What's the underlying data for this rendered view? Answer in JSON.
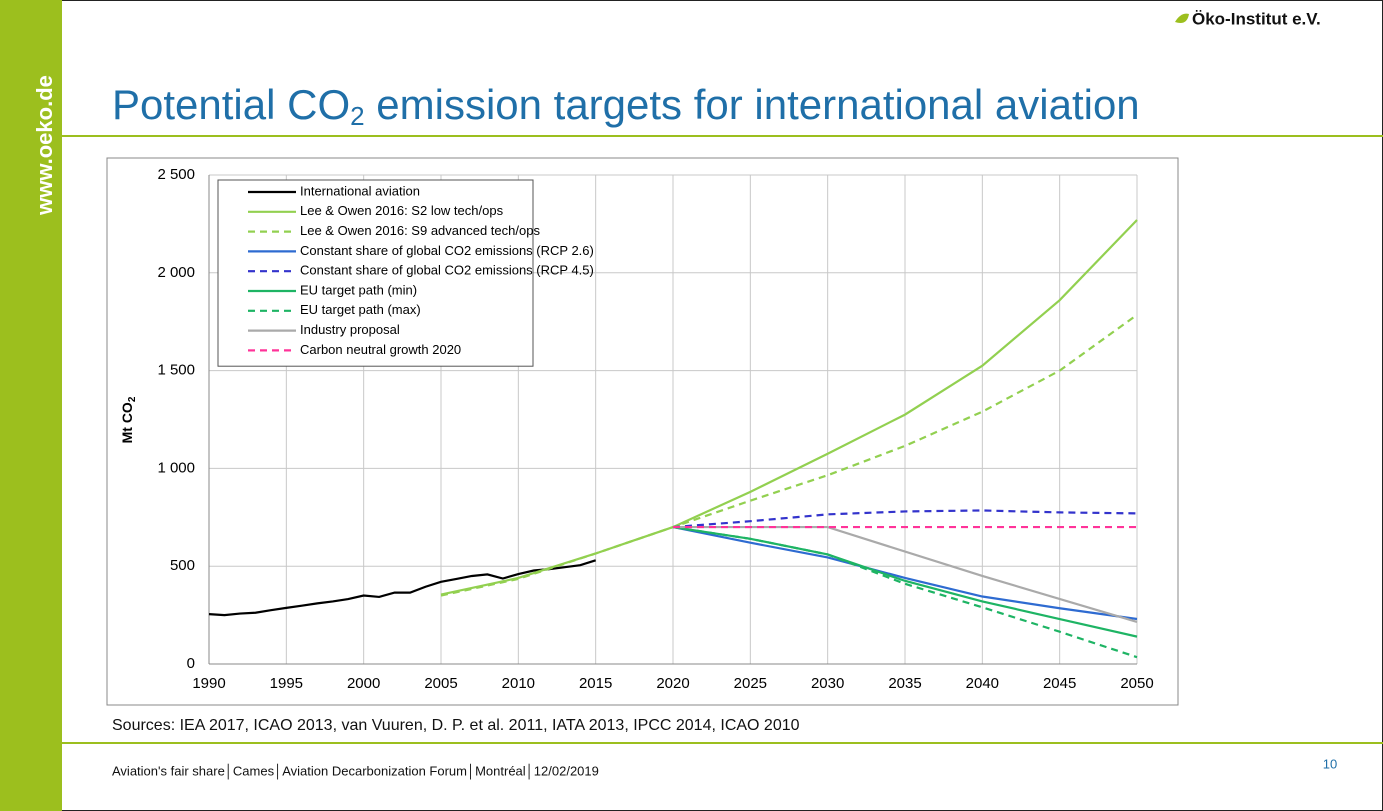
{
  "slide": {
    "sidebar": "www.oeko.de",
    "logo": "Öko-Institut e.V.",
    "title_parts": [
      "Potential CO",
      "2",
      " emission targets for international aviation"
    ],
    "sources": "Sources: IEA 2017, ICAO 2013, van Vuuren, D. P. et al. 2011, IATA 2013, IPCC 2014, ICAO 2010",
    "footer": "Aviation's fair share│Cames│Aviation Decarbonization Forum│Montréal│12/02/2019",
    "page": "10"
  },
  "chart_data": {
    "type": "line",
    "ylabel_parts": [
      "Mt CO",
      "2"
    ],
    "xlim": [
      1990,
      2050
    ],
    "xticks": [
      1990,
      1995,
      2000,
      2005,
      2010,
      2015,
      2020,
      2025,
      2030,
      2035,
      2040,
      2045,
      2050
    ],
    "ylim": [
      0,
      2500
    ],
    "yticks": [
      0,
      500,
      {
        "value": 1000,
        "label": "1 000"
      },
      {
        "value": 1500,
        "label": "1 500"
      },
      {
        "value": 2000,
        "label": "2 000"
      },
      {
        "value": 2500,
        "label": "2 500"
      }
    ],
    "grid": true,
    "legend": "upper left",
    "series": [
      {
        "name": "International aviation",
        "color": "#000000",
        "dashed": false,
        "x": [
          1990,
          1991,
          1992,
          1993,
          1994,
          1995,
          1996,
          1997,
          1998,
          1999,
          2000,
          2001,
          2002,
          2003,
          2004,
          2005,
          2006,
          2007,
          2008,
          2009,
          2010,
          2011,
          2012,
          2013,
          2014,
          2015
        ],
        "values": [
          255,
          250,
          258,
          262,
          275,
          287,
          298,
          310,
          320,
          332,
          350,
          343,
          365,
          365,
          395,
          420,
          435,
          450,
          458,
          437,
          460,
          478,
          485,
          495,
          505,
          530
        ]
      },
      {
        "name": "Lee & Owen 2016: S2 low tech/ops",
        "color": "#92d050",
        "dashed": false,
        "x": [
          2005,
          2010,
          2015,
          2020,
          2025,
          2030,
          2035,
          2040,
          2045,
          2050
        ],
        "values": [
          355,
          440,
          565,
          700,
          880,
          1075,
          1275,
          1525,
          1860,
          2270
        ]
      },
      {
        "name": "Lee & Owen 2016: S9 advanced tech/ops",
        "color": "#92d050",
        "dashed": true,
        "x": [
          2005,
          2010,
          2015,
          2020,
          2025,
          2030,
          2035,
          2040,
          2045,
          2050
        ],
        "values": [
          350,
          435,
          565,
          700,
          835,
          965,
          1115,
          1290,
          1500,
          1785
        ]
      },
      {
        "name": "Constant share of global CO2 emissions (RCP 2.6)",
        "color": "#2e6bd1",
        "dashed": false,
        "x": [
          2020,
          2025,
          2030,
          2035,
          2040,
          2045,
          2050
        ],
        "values": [
          700,
          620,
          545,
          440,
          345,
          285,
          230
        ]
      },
      {
        "name": "Constant share of global CO2 emissions (RCP 4.5)",
        "color": "#3333cc",
        "dashed": true,
        "x": [
          2020,
          2025,
          2030,
          2035,
          2040,
          2045,
          2050
        ],
        "values": [
          700,
          730,
          765,
          780,
          785,
          775,
          770
        ]
      },
      {
        "name": "EU target path (min)",
        "color": "#1eb464",
        "dashed": false,
        "x": [
          2020,
          2025,
          2030,
          2035,
          2040,
          2045,
          2050
        ],
        "values": [
          700,
          640,
          560,
          425,
          320,
          230,
          140
        ]
      },
      {
        "name": "EU target path (max)",
        "color": "#1eb464",
        "dashed": true,
        "x": [
          2020,
          2025,
          2030,
          2035,
          2040,
          2045,
          2050
        ],
        "values": [
          700,
          640,
          560,
          410,
          290,
          165,
          35
        ]
      },
      {
        "name": "Industry proposal",
        "color": "#aaaaaa",
        "dashed": false,
        "x": [
          2020,
          2030,
          2040,
          2050
        ],
        "values": [
          700,
          700,
          450,
          215
        ]
      },
      {
        "name": "Carbon neutral growth 2020",
        "color": "#ff3399",
        "dashed": true,
        "x": [
          2020,
          2050
        ],
        "values": [
          700,
          700
        ]
      }
    ]
  }
}
